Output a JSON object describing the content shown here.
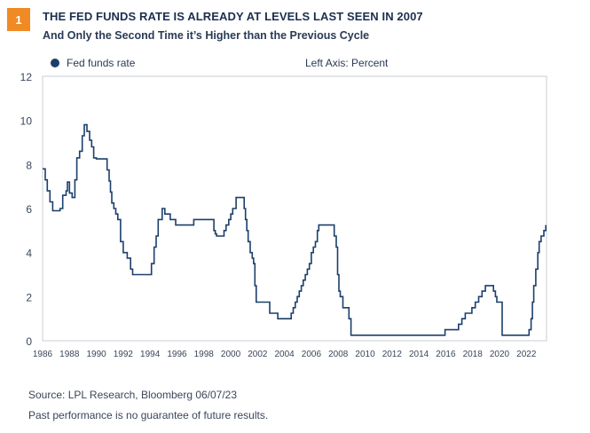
{
  "header": {
    "badge": "1",
    "title": "THE FED FUNDS RATE IS ALREADY AT LEVELS LAST SEEN IN 2007",
    "subtitle": "And Only the Second Time it’s Higher than the Previous Cycle"
  },
  "legend": {
    "series_label": "Fed funds rate",
    "axis_note": "Left Axis: Percent"
  },
  "footer": {
    "source": "Source: LPL Research, Bloomberg  06/07/23",
    "disclaimer": "Past performance is no guarantee of future results."
  },
  "colors": {
    "series": "#1b3f6b",
    "badge": "#f08a24",
    "plot_border": "#c9cdd3"
  },
  "chart_data": {
    "type": "line",
    "title": "THE FED FUNDS RATE IS ALREADY AT LEVELS LAST SEEN IN 2007",
    "subtitle": "And Only the Second Time it’s Higher than the Previous Cycle",
    "xlabel": "",
    "ylabel": "Left Axis: Percent",
    "xlim": [
      1986,
      2023.5
    ],
    "ylim": [
      0,
      12
    ],
    "y_ticks": [
      0,
      2,
      4,
      6,
      8,
      10,
      12
    ],
    "x_ticks": [
      1986,
      1988,
      1990,
      1992,
      1994,
      1996,
      1998,
      2000,
      2002,
      2004,
      2006,
      2008,
      2010,
      2012,
      2014,
      2016,
      2018,
      2020,
      2022
    ],
    "grid": false,
    "legend_position": "top-left",
    "series": [
      {
        "name": "Fed funds rate",
        "step": true,
        "x": [
          1986.0,
          1986.2,
          1986.35,
          1986.55,
          1986.75,
          1987.3,
          1987.5,
          1987.75,
          1987.85,
          1988.0,
          1988.2,
          1988.4,
          1988.55,
          1988.75,
          1988.95,
          1989.1,
          1989.3,
          1989.5,
          1989.65,
          1989.8,
          1990.0,
          1990.8,
          1990.95,
          1991.05,
          1991.15,
          1991.3,
          1991.45,
          1991.6,
          1991.8,
          1992.0,
          1992.3,
          1992.55,
          1992.7,
          1994.1,
          1994.3,
          1994.45,
          1994.6,
          1994.9,
          1995.1,
          1995.5,
          1995.9,
          1996.1,
          1997.25,
          1998.75,
          1998.85,
          1998.95,
          1999.5,
          1999.65,
          1999.85,
          2000.0,
          2000.15,
          2000.4,
          2001.0,
          2001.1,
          2001.2,
          2001.3,
          2001.45,
          2001.6,
          2001.7,
          2001.8,
          2001.9,
          2002.9,
          2003.5,
          2004.5,
          2004.65,
          2004.8,
          2004.95,
          2005.1,
          2005.25,
          2005.4,
          2005.55,
          2005.7,
          2005.85,
          2006.0,
          2006.15,
          2006.3,
          2006.45,
          2006.55,
          2007.7,
          2007.85,
          2007.95,
          2008.05,
          2008.15,
          2008.25,
          2008.35,
          2008.8,
          2008.95,
          2015.95,
          2016.95,
          2017.2,
          2017.45,
          2017.7,
          2017.95,
          2018.2,
          2018.45,
          2018.7,
          2018.95,
          2019.55,
          2019.7,
          2019.8,
          2020.2,
          2022.2,
          2022.35,
          2022.45,
          2022.55,
          2022.7,
          2022.85,
          2022.95,
          2023.1,
          2023.3,
          2023.45
        ],
        "values": [
          7.8,
          7.3,
          6.8,
          6.3,
          5.9,
          6.0,
          6.6,
          6.8,
          7.2,
          6.7,
          6.5,
          7.3,
          8.3,
          8.6,
          9.3,
          9.8,
          9.5,
          9.1,
          8.8,
          8.3,
          8.25,
          7.75,
          7.25,
          6.75,
          6.25,
          6.0,
          5.75,
          5.5,
          4.5,
          4.0,
          3.75,
          3.25,
          3.0,
          3.5,
          4.25,
          4.75,
          5.5,
          6.0,
          5.75,
          5.5,
          5.25,
          5.25,
          5.5,
          5.0,
          4.85,
          4.75,
          5.0,
          5.25,
          5.5,
          5.75,
          6.0,
          6.5,
          6.0,
          5.5,
          5.0,
          4.5,
          4.0,
          3.75,
          3.5,
          2.5,
          1.75,
          1.25,
          1.0,
          1.25,
          1.5,
          1.75,
          2.0,
          2.25,
          2.5,
          2.75,
          3.0,
          3.25,
          3.5,
          4.0,
          4.25,
          4.5,
          5.0,
          5.25,
          4.75,
          4.25,
          3.0,
          2.25,
          2.0,
          2.0,
          1.5,
          1.0,
          0.25,
          0.5,
          0.75,
          1.0,
          1.25,
          1.25,
          1.5,
          1.75,
          2.0,
          2.25,
          2.5,
          2.25,
          2.0,
          1.75,
          0.25,
          0.5,
          1.0,
          1.75,
          2.5,
          3.25,
          4.0,
          4.5,
          4.75,
          5.0,
          5.25
        ]
      }
    ]
  }
}
